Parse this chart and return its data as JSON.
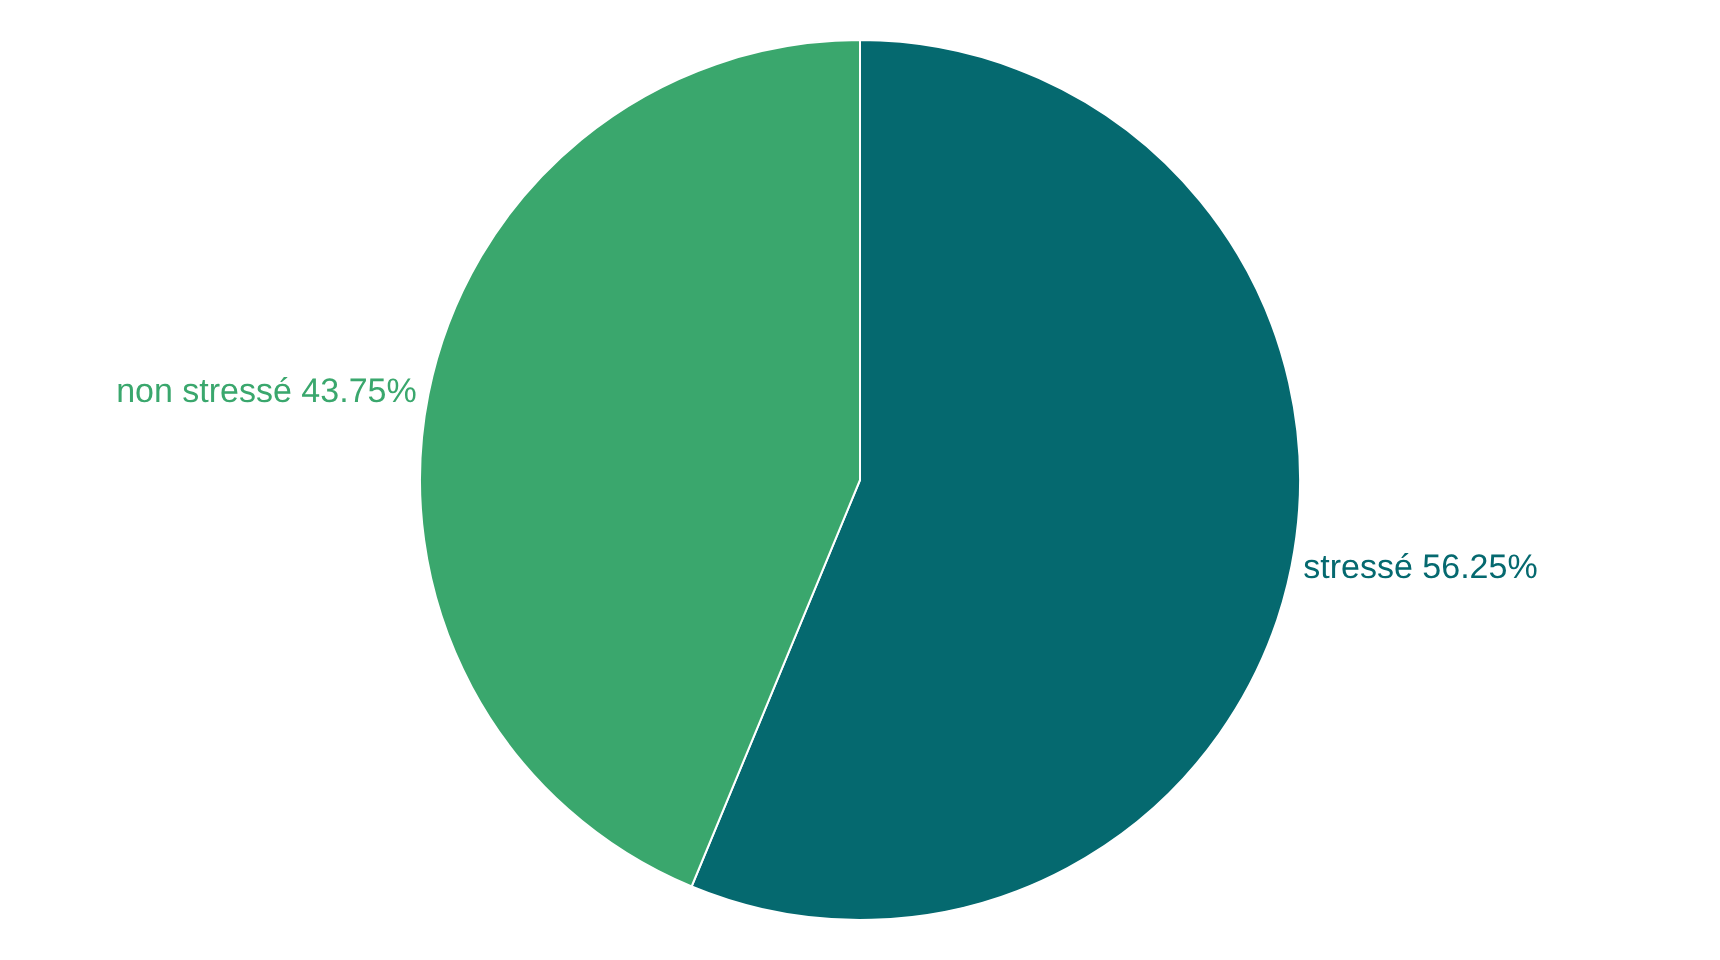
{
  "chart_data": {
    "type": "pie",
    "categories": [
      "stressé",
      "non stressé"
    ],
    "values": [
      56.25,
      43.75
    ],
    "value_labels": [
      "56.25%",
      "43.75%"
    ],
    "colors": [
      "#05696f",
      "#3aa76d"
    ]
  }
}
